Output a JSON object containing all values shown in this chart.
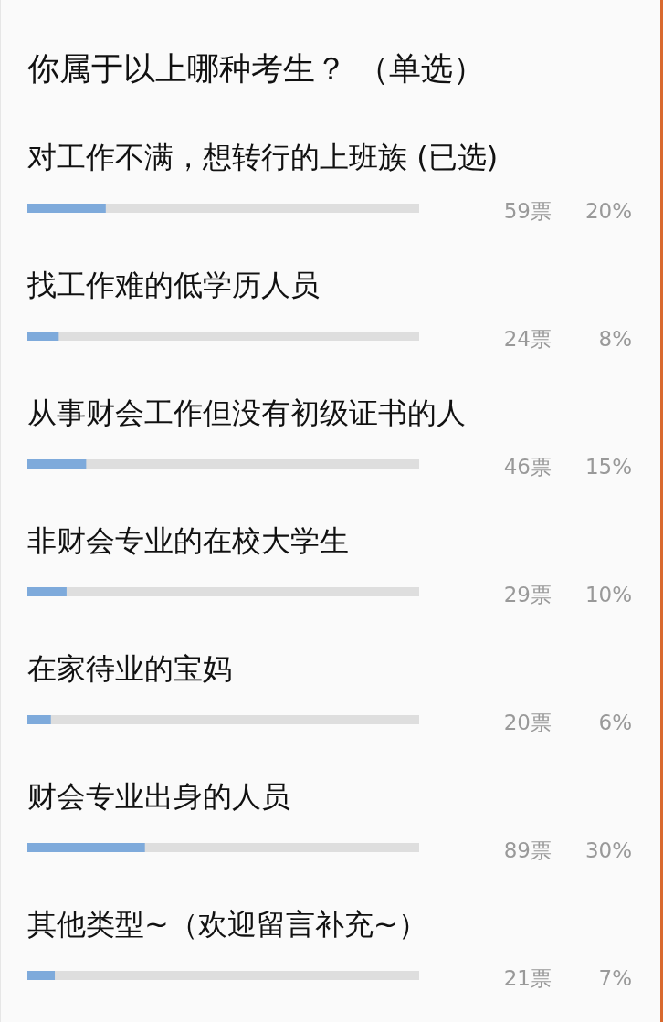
{
  "chart_data": {
    "type": "bar",
    "orientation": "horizontal",
    "title": "你属于以上哪种考生？ （单选）",
    "categories": [
      "对工作不满，想转行的上班族 (已选)",
      "找工作难的低学历人员",
      "从事财会工作但没有初级证书的人",
      "非财会专业的在校大学生",
      "在家待业的宝妈",
      "财会专业出身的人员",
      "其他类型~（欢迎留言补充~）"
    ],
    "values": [
      20,
      8,
      15,
      10,
      6,
      30,
      7
    ],
    "value_labels": [
      "20%",
      "8%",
      "15%",
      "10%",
      "6%",
      "30%",
      "7%"
    ],
    "color": "#7eaadb",
    "xlim": [
      0,
      100
    ],
    "annotations": [
      "59票",
      "24票",
      "46票",
      "29票",
      "20票",
      "89票",
      "21票"
    ]
  }
}
